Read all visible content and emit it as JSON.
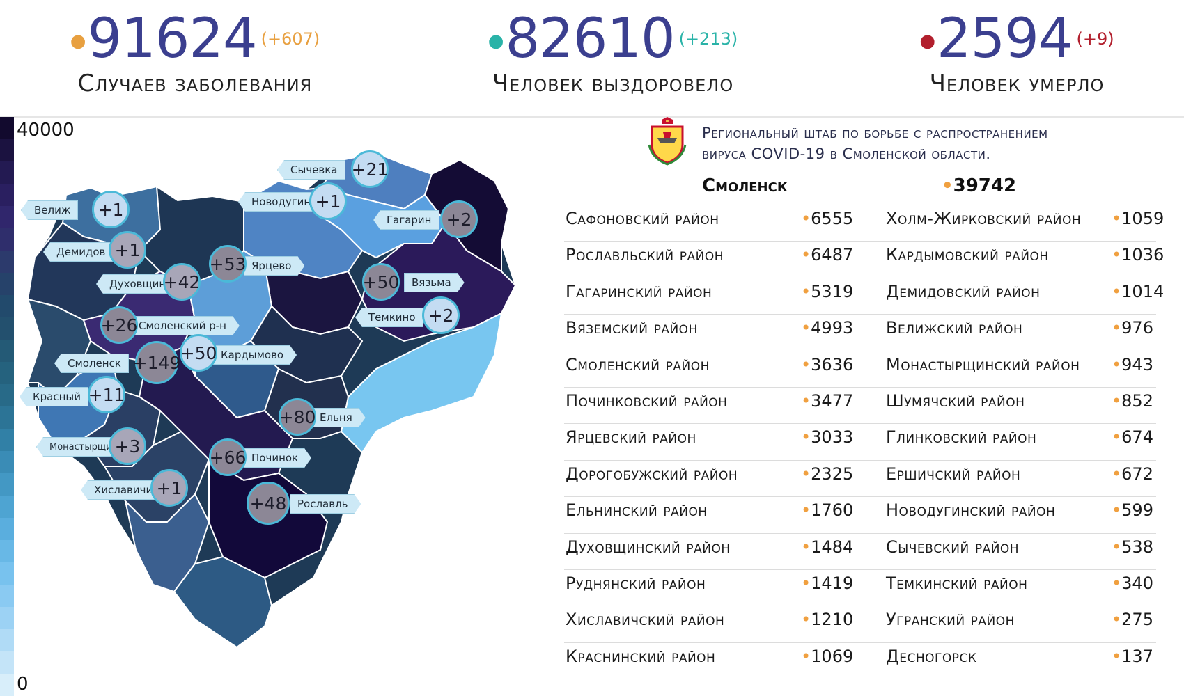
{
  "header": {
    "cases": {
      "value": "91624",
      "delta": "(+607)",
      "label": "Случаев заболевания",
      "color": "#e8a040"
    },
    "recovered": {
      "value": "82610",
      "delta": "(+213)",
      "label": "Человек выздоровело",
      "color": "#2ab3a8"
    },
    "deaths": {
      "value": "2594",
      "delta": "(+9)",
      "label": "Человек умерло",
      "color": "#b21f2d"
    }
  },
  "legend": {
    "max": "40000",
    "min": "0",
    "colors": [
      "#120a2e",
      "#1b1240",
      "#231a52",
      "#2a1f60",
      "#30266c",
      "#2f2e6c",
      "#2c3a6c",
      "#26426a",
      "#224a6c",
      "#23506e",
      "#245a76",
      "#25627e",
      "#286a88",
      "#2c7496",
      "#3180a6",
      "#3a8cb6",
      "#4398c4",
      "#4ea4d2",
      "#5aaede",
      "#68b8e6",
      "#78c2ee",
      "#8acaf2",
      "#9cd2f4",
      "#b0dbf6",
      "#c4e4f8",
      "#d8eefa"
    ]
  },
  "hq_title": [
    "Региональный штаб по борьбе с распространением",
    "вируса  COVID-19 в Смоленской области."
  ],
  "smolensk": {
    "name": "Смоленск",
    "value": "39742"
  },
  "table": [
    {
      "left_name": "Сафоновский район",
      "left_value": "6555",
      "right_name": "Холм-Жирковский район",
      "right_value": "1059"
    },
    {
      "left_name": "Рославльский район",
      "left_value": "6487",
      "right_name": "Кардымовский район",
      "right_value": "1036"
    },
    {
      "left_name": "Гагаринский район",
      "left_value": "5319",
      "right_name": "Демидовский район",
      "right_value": "1014"
    },
    {
      "left_name": "Вяземский район",
      "left_value": "4993",
      "right_name": "Велижский район",
      "right_value": "976"
    },
    {
      "left_name": "Смоленский район",
      "left_value": "3636",
      "right_name": "Монастырщинский район",
      "right_value": "943"
    },
    {
      "left_name": "Починковский район",
      "left_value": "3477",
      "right_name": "Шумячский район",
      "right_value": "852"
    },
    {
      "left_name": "Ярцевский район",
      "left_value": "3033",
      "right_name": "Глинковский район",
      "right_value": "674"
    },
    {
      "left_name": "Дорогобужский район",
      "left_value": "2325",
      "right_name": "Ершичский район",
      "right_value": "672"
    },
    {
      "left_name": "Ельнинский район",
      "left_value": "1760",
      "right_name": "Новодугинский район",
      "right_value": "599"
    },
    {
      "left_name": "Духовщинский район",
      "left_value": "1484",
      "right_name": "Сычевский район",
      "right_value": "538"
    },
    {
      "left_name": "Руднянский район",
      "left_value": "1419",
      "right_name": "Темкинский район",
      "right_value": "340"
    },
    {
      "left_name": "Хиславичский район",
      "left_value": "1210",
      "right_name": "Угранский район",
      "right_value": "275"
    },
    {
      "left_name": "Краснинский район",
      "left_value": "1069",
      "right_name": "Десногорск",
      "right_value": "137"
    }
  ],
  "map": {
    "markers": [
      {
        "label": "Сычевка",
        "delta": "+21"
      },
      {
        "label": "Велиж",
        "delta": "+1"
      },
      {
        "label": "Новодугино",
        "delta": "+1"
      },
      {
        "label": "Гагарин",
        "delta": "+2"
      },
      {
        "label": "Демидов",
        "delta": "+1"
      },
      {
        "label": "Ярцево",
        "delta": "+53"
      },
      {
        "label": "Вязьма",
        "delta": "+50"
      },
      {
        "label": "Духовщина",
        "delta": "+42"
      },
      {
        "label": "Темкино",
        "delta": "+2"
      },
      {
        "label": "Смоленский р-н",
        "delta": "+26"
      },
      {
        "label": "Кардымово",
        "delta": "+50"
      },
      {
        "label": "Смоленск",
        "delta": "+149"
      },
      {
        "label": "Красный",
        "delta": "+11"
      },
      {
        "label": "Ельня",
        "delta": "+80"
      },
      {
        "label": "Монастырщина",
        "delta": "+3"
      },
      {
        "label": "Починок",
        "delta": "+66"
      },
      {
        "label": "Хиславичи",
        "delta": "+1"
      },
      {
        "label": "Рославль",
        "delta": "+48"
      }
    ]
  }
}
